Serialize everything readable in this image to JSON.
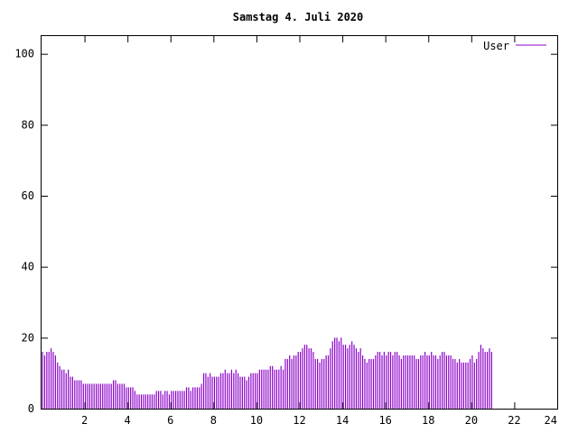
{
  "chart_data": {
    "type": "bar",
    "title": "Samstag 4. Juli 2020",
    "xlabel": "",
    "ylabel": "",
    "xlim": [
      0,
      24
    ],
    "ylim": [
      0,
      105
    ],
    "xticks": [
      2,
      4,
      6,
      8,
      10,
      12,
      14,
      16,
      18,
      20,
      22,
      24
    ],
    "yticks": [
      0,
      20,
      40,
      60,
      80,
      100
    ],
    "grid": false,
    "legend_position": "top-right",
    "series": [
      {
        "name": "User",
        "color": "#8b00c8",
        "x_step_hours": 0.1,
        "values": [
          16,
          15,
          16,
          16,
          17,
          16,
          15,
          13,
          12,
          11,
          11,
          10,
          11,
          9,
          9,
          8,
          8,
          8,
          8,
          7,
          7,
          7,
          7,
          7,
          7,
          7,
          7,
          7,
          7,
          7,
          7,
          7,
          7,
          8,
          8,
          7,
          7,
          7,
          7,
          6,
          6,
          6,
          6,
          5,
          4,
          4,
          4,
          4,
          4,
          4,
          4,
          4,
          4,
          5,
          5,
          5,
          4,
          5,
          5,
          4,
          5,
          5,
          5,
          5,
          5,
          5,
          5,
          6,
          6,
          5,
          6,
          6,
          6,
          6,
          7,
          10,
          10,
          9,
          10,
          9,
          9,
          9,
          9,
          10,
          10,
          11,
          10,
          10,
          11,
          10,
          11,
          10,
          9,
          9,
          9,
          8,
          9,
          10,
          10,
          10,
          10,
          11,
          11,
          11,
          11,
          11,
          12,
          12,
          11,
          11,
          11,
          12,
          11,
          14,
          14,
          15,
          14,
          15,
          15,
          16,
          16,
          17,
          18,
          18,
          17,
          17,
          16,
          14,
          14,
          13,
          14,
          14,
          15,
          15,
          17,
          19,
          20,
          20,
          19,
          20,
          18,
          18,
          17,
          18,
          19,
          18,
          17,
          16,
          17,
          15,
          14,
          13,
          14,
          14,
          14,
          15,
          16,
          16,
          15,
          16,
          15,
          16,
          16,
          15,
          16,
          16,
          15,
          14,
          15,
          15,
          15,
          15,
          15,
          15,
          14,
          14,
          15,
          15,
          16,
          15,
          15,
          16,
          15,
          15,
          14,
          15,
          16,
          16,
          15,
          15,
          15,
          14,
          14,
          13,
          14,
          13,
          13,
          13,
          13,
          14,
          15,
          13,
          14,
          16,
          18,
          17,
          16,
          16,
          17,
          16
        ]
      }
    ]
  }
}
